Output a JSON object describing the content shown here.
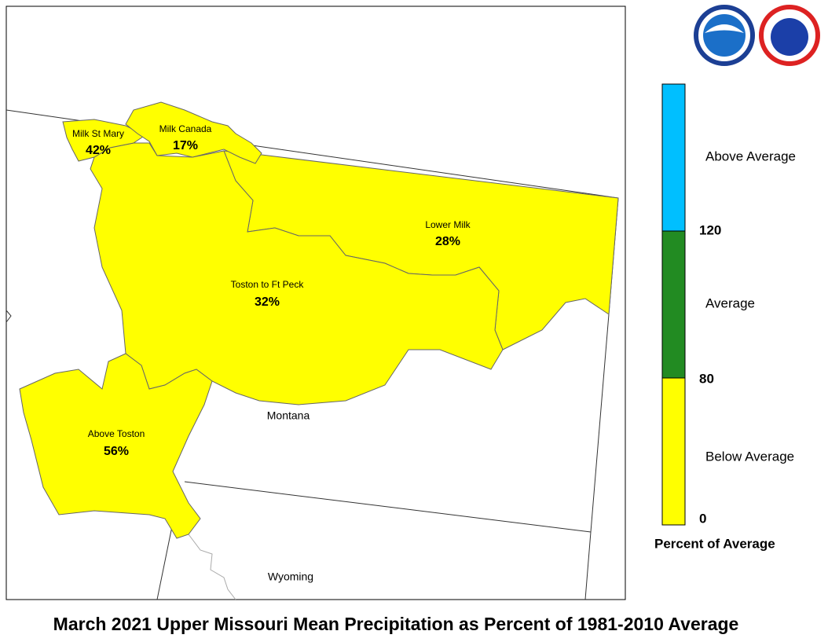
{
  "title": "March 2021 Upper Missouri Mean Precipitation as Percent of 1981-2010 Average",
  "regions": [
    {
      "name": "Milk St Mary",
      "value": "42%"
    },
    {
      "name": "Milk Canada",
      "value": "17%"
    },
    {
      "name": "Lower Milk",
      "value": "28%"
    },
    {
      "name": "Toston to Ft Peck",
      "value": "32%"
    },
    {
      "name": "Above Toston",
      "value": "56%"
    }
  ],
  "states": [
    "Montana",
    "Wyoming"
  ],
  "legend": {
    "title": "Percent of Average",
    "categories": [
      "Above Average",
      "Average",
      "Below Average"
    ],
    "breaks": [
      "120",
      "80",
      "0"
    ]
  }
}
